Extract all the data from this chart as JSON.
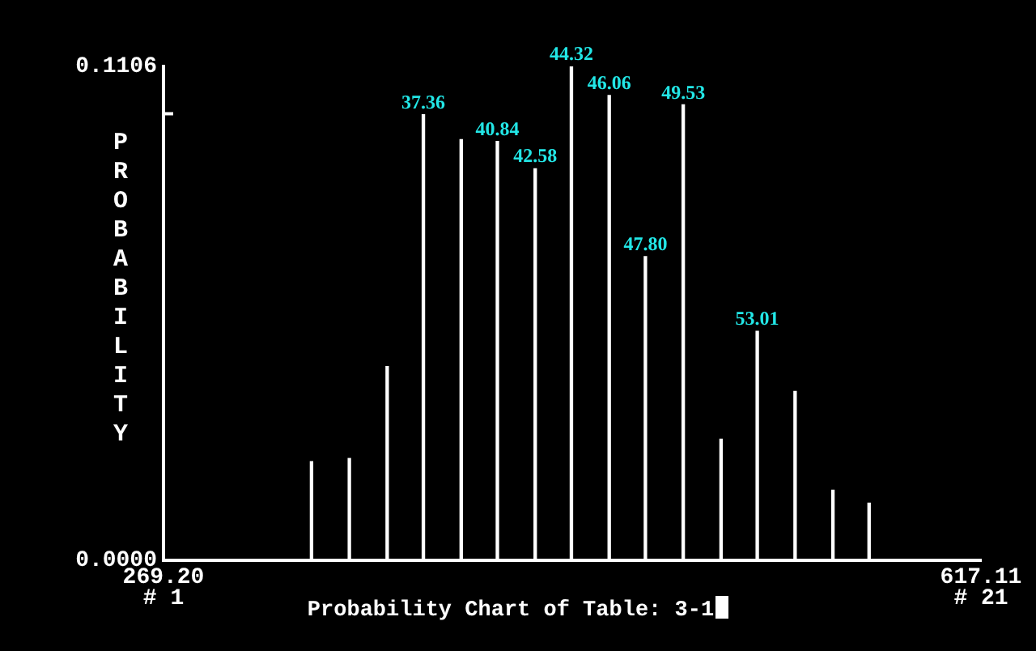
{
  "chart_data": {
    "type": "bar",
    "title": "Probability Chart of Table: 3-1",
    "ylabel": "PROBABILITY",
    "x": [
      332.2,
      348.3,
      364.4,
      379.8,
      395.9,
      411.3,
      427.4,
      442.8,
      458.9,
      474.3,
      490.4,
      506.5,
      521.9,
      538.0,
      554.1,
      569.5
    ],
    "values": [
      0.0221,
      0.0228,
      0.0434,
      0.0998,
      0.0942,
      0.0938,
      0.0877,
      0.1106,
      0.1041,
      0.068,
      0.102,
      0.0271,
      0.0513,
      0.0378,
      0.0157,
      0.0128
    ],
    "color": "#ffffff",
    "xlim": [
      269.2,
      617.11
    ],
    "xticks": [
      {
        "value": 269.2,
        "label": "269.20"
      },
      {
        "value": 617.11,
        "label": "617.11"
      }
    ],
    "ylim": [
      0,
      0.1106
    ],
    "yticks": [
      {
        "value": 0,
        "label": "0.0000"
      },
      {
        "value": 0.1,
        "label": null
      },
      {
        "value": 0.1106,
        "label": "0.1106"
      }
    ],
    "annotations": [
      {
        "text": "37.36",
        "x": 379.8,
        "y": 0.0998
      },
      {
        "text": "40.84",
        "x": 411.3,
        "y": 0.0938
      },
      {
        "text": "42.58",
        "x": 427.4,
        "y": 0.0877
      },
      {
        "text": "44.32",
        "x": 442.8,
        "y": 0.1106
      },
      {
        "text": "46.06",
        "x": 458.9,
        "y": 0.1041
      },
      {
        "text": "47.80",
        "x": 474.3,
        "y": 0.068
      },
      {
        "text": "49.53",
        "x": 490.4,
        "y": 0.102
      },
      {
        "text": "53.01",
        "x": 521.9,
        "y": 0.0513
      },
      "# 1",
      "# 21"
    ]
  }
}
